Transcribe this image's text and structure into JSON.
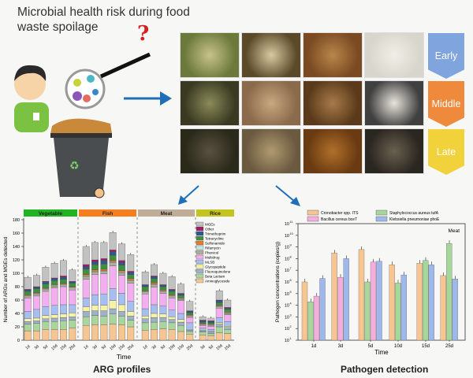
{
  "header": {
    "title": "Microbial health risk during food waste spoilage",
    "question_mark": "?"
  },
  "stages": [
    {
      "label": "Early",
      "color": "#7fa4de"
    },
    {
      "label": "Middle",
      "color": "#ef8a3c"
    },
    {
      "label": "Late",
      "color": "#f2d23a"
    }
  ],
  "captions": {
    "arg": "ARG profiles",
    "pathogen": "Pathogen detection"
  },
  "chart_data": [
    {
      "type": "bar",
      "stacked": true,
      "title": "ARG profiles",
      "xlabel": "Time",
      "ylabel": "Number of ARGs and MGEs detected",
      "ylim": [
        0,
        180
      ],
      "yticks": [
        0,
        20,
        40,
        60,
        80,
        100,
        120,
        140,
        160,
        180
      ],
      "categories_legend": [
        "Aminoglycoside",
        "Beta Lactam",
        "Fluoroquinolone",
        "Glycopeptide",
        "MLSB",
        "Multidrug",
        "Phenicol",
        "Rifamycin",
        "Sulfonamide",
        "Tetracycline",
        "Trimethoprim",
        "Other",
        "MGEs"
      ],
      "colors": [
        "#f6c592",
        "#a9d69c",
        "#9eb0ca",
        "#f7f3a4",
        "#a6bff0",
        "#f3aef0",
        "#aeae9e",
        "#c7e6de",
        "#e8782e",
        "#3f8f3f",
        "#2f5890",
        "#a01f60",
        "#c2c2c2"
      ],
      "groups": [
        {
          "name": "Vegetable",
          "color": "#22b322",
          "days": [
            "1d",
            "3d",
            "5d",
            "10d",
            "15d",
            "25d"
          ],
          "bars": [
            [
              14,
              10,
              4,
              4,
              11,
              20,
              3,
              1,
              1,
              5,
              2,
              1,
              18
            ],
            [
              14,
              11,
              4,
              4,
              13,
              20,
              3,
              1,
              1,
              6,
              2,
              1,
              17
            ],
            [
              16,
              12,
              4,
              5,
              13,
              23,
              3,
              1,
              1,
              6,
              3,
              1,
              21
            ],
            [
              16,
              12,
              5,
              5,
              14,
              26,
              3,
              1,
              1,
              6,
              3,
              1,
              22
            ],
            [
              16,
              13,
              5,
              5,
              14,
              27,
              3,
              1,
              1,
              6,
              3,
              2,
              23
            ],
            [
              18,
              12,
              5,
              6,
              12,
              22,
              3,
              1,
              1,
              5,
              2,
              1,
              17
            ]
          ]
        },
        {
          "name": "Fish",
          "color": "#f57f1f",
          "days": [
            "1d",
            "3d",
            "5d",
            "10d",
            "15d",
            "25d"
          ],
          "bars": [
            [
              22,
              13,
              8,
              7,
              13,
              28,
              4,
              1,
              2,
              8,
              4,
              3,
              27
            ],
            [
              23,
              14,
              7,
              8,
              16,
              30,
              4,
              1,
              2,
              8,
              4,
              3,
              26
            ],
            [
              23,
              13,
              8,
              8,
              17,
              30,
              4,
              1,
              2,
              8,
              5,
              3,
              24
            ],
            [
              24,
              15,
              8,
              12,
              18,
              34,
              5,
              1,
              2,
              8,
              5,
              3,
              26
            ],
            [
              23,
              13,
              7,
              10,
              17,
              27,
              4,
              1,
              2,
              8,
              4,
              3,
              25
            ],
            [
              20,
              10,
              6,
              7,
              15,
              27,
              4,
              1,
              2,
              6,
              3,
              2,
              25
            ]
          ]
        },
        {
          "name": "Meat",
          "color": "#c0ad98",
          "days": [
            "1d",
            "3d",
            "5d",
            "10d",
            "15d",
            "25d"
          ],
          "bars": [
            [
              15,
              11,
              6,
              4,
              11,
              22,
              3,
              1,
              1,
              6,
              2,
              1,
              19
            ],
            [
              16,
              11,
              7,
              6,
              13,
              26,
              4,
              1,
              2,
              6,
              3,
              1,
              17
            ],
            [
              17,
              11,
              6,
              5,
              12,
              19,
              3,
              1,
              1,
              5,
              2,
              1,
              17
            ],
            [
              16,
              10,
              5,
              4,
              10,
              18,
              3,
              1,
              1,
              5,
              2,
              1,
              19
            ],
            [
              13,
              9,
              5,
              4,
              9,
              19,
              2,
              1,
              1,
              4,
              2,
              1,
              14
            ],
            [
              9,
              4,
              2,
              1,
              10,
              8,
              2,
              1,
              1,
              3,
              2,
              1,
              14
            ]
          ]
        },
        {
          "name": "Rice",
          "color": "#c4c41e",
          "days": [
            "3d",
            "5d",
            "10d",
            "15d"
          ],
          "bars": [
            [
              8,
              4,
              2,
              1,
              3,
              4,
              1,
              1,
              1,
              2,
              2,
              1,
              5
            ],
            [
              7,
              3,
              2,
              1,
              3,
              5,
              1,
              1,
              1,
              2,
              2,
              1,
              4
            ],
            [
              11,
              9,
              4,
              2,
              8,
              14,
              2,
              1,
              1,
              4,
              3,
              1,
              14
            ],
            [
              10,
              6,
              3,
              2,
              7,
              10,
              2,
              1,
              1,
              4,
              2,
              1,
              11
            ]
          ]
        }
      ]
    },
    {
      "type": "bar",
      "scale": "log",
      "title": "Pathogen detection",
      "annotation": "Meat",
      "xlabel": "Time",
      "ylabel": "Pathogen concentrations (copies/g)",
      "ylim_exp": [
        1,
        11
      ],
      "categories": [
        "1d",
        "3d",
        "5d",
        "10d",
        "15d",
        "25d"
      ],
      "series": [
        {
          "name": "Cronobacter spp. ITS",
          "color": "#f6c592",
          "values": [
            1000000.0,
            300000000.0,
            600000000.0,
            30000000.0,
            40000000.0,
            3500000.0
          ]
        },
        {
          "name": "Staphylococcus aureus tufA",
          "color": "#a6d69a",
          "values": [
            20000.0,
            null,
            1000000.0,
            800000.0,
            70000000.0,
            2000000000.0
          ]
        },
        {
          "name": "Bacillus cereus bceT",
          "color": "#f3aedc",
          "values": [
            60000.0,
            2500000.0,
            50000000.0,
            null,
            null,
            null
          ]
        },
        {
          "name": "Klebsiella pneumoniae phoE",
          "color": "#9fb8ea",
          "values": [
            2000000.0,
            100000000.0,
            60000000.0,
            4000000.0,
            30000000.0,
            1800000.0
          ]
        }
      ]
    }
  ]
}
